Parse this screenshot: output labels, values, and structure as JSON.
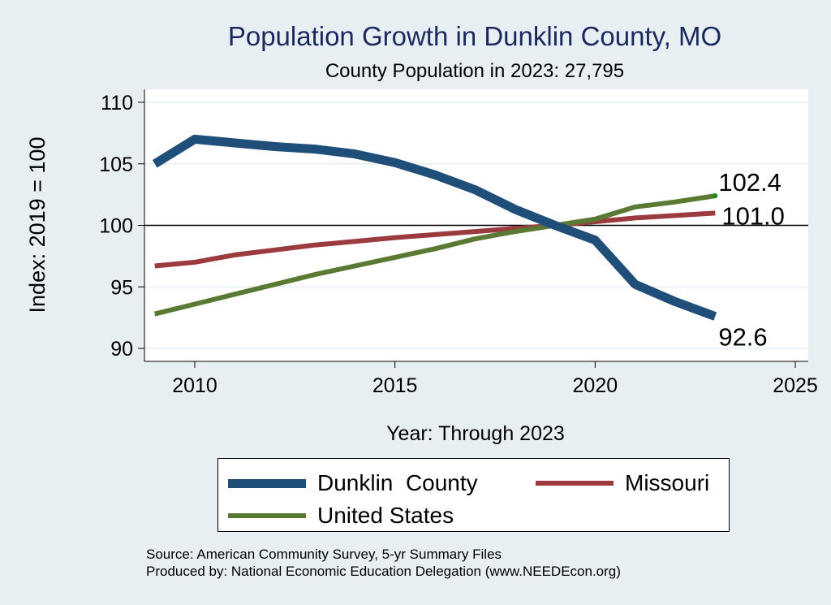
{
  "chart_data": {
    "type": "line",
    "title": "Population Growth in Dunklin County, MO",
    "subtitle": "County Population in 2023: 27,795",
    "xlabel": "Year: Through 2023",
    "ylabel": "Index: 2019 = 100",
    "xlim": [
      2009,
      2025
    ],
    "ylim": [
      89,
      111
    ],
    "xticks": [
      2010,
      2015,
      2020,
      2025
    ],
    "yticks": [
      90,
      95,
      100,
      105,
      110
    ],
    "reference_line": 100,
    "grid": true,
    "legend_position": "bottom",
    "x": [
      2009,
      2010,
      2011,
      2012,
      2013,
      2014,
      2015,
      2016,
      2017,
      2018,
      2019,
      2020,
      2021,
      2022,
      2023
    ],
    "series": [
      {
        "name": "Dunklin  County",
        "color": "#1f4e79",
        "values": [
          105.0,
          107.0,
          106.7,
          106.4,
          106.2,
          105.8,
          105.1,
          104.1,
          102.9,
          101.3,
          100.0,
          98.8,
          95.2,
          93.8,
          92.6
        ],
        "end_label": "92.6"
      },
      {
        "name": "Missouri",
        "color": "#9b3a3f",
        "values": [
          96.7,
          97.0,
          97.6,
          98.0,
          98.4,
          98.7,
          99.0,
          99.25,
          99.5,
          99.75,
          100.0,
          100.3,
          100.6,
          100.8,
          101.0
        ],
        "end_label": "101.0"
      },
      {
        "name": "United States",
        "color": "#5a7a34",
        "values": [
          92.8,
          93.6,
          94.4,
          95.2,
          96.0,
          96.7,
          97.4,
          98.1,
          98.9,
          99.5,
          100.0,
          100.5,
          101.5,
          101.9,
          102.4
        ],
        "end_label": "102.4"
      }
    ]
  },
  "source_text": "Source: American Community Survey, 5-yr Summary Files",
  "produced_by_text": "Produced by: National Economic Education Delegation (www.NEEDEcon.org)"
}
